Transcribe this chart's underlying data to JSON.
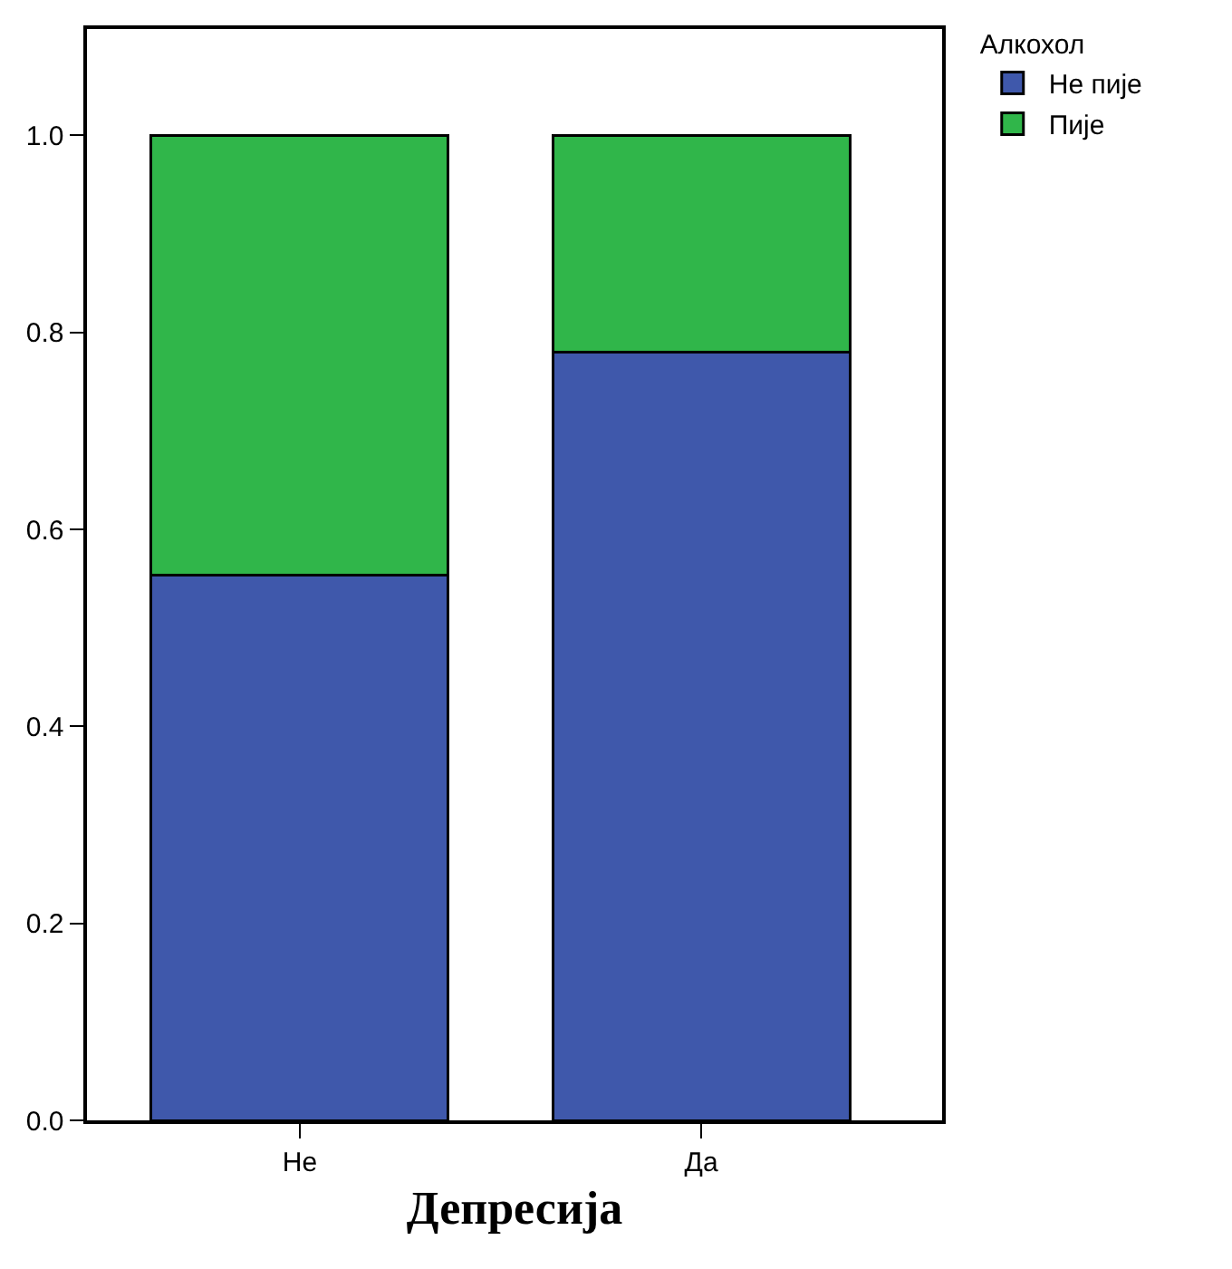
{
  "chart_data": {
    "type": "bar",
    "stacked": true,
    "xlabel": "Депресија",
    "legend_title": "Алкохол",
    "legend": "top right",
    "categories": [
      "Не",
      "Да"
    ],
    "series": [
      {
        "name": "Не пије",
        "color": "#3f58ab",
        "values": [
          0.554,
          0.78
        ]
      },
      {
        "name": "Пије",
        "color": "#30b64a",
        "values": [
          0.446,
          0.22
        ]
      }
    ],
    "ylim": [
      0,
      1.108
    ],
    "yticks": [
      {
        "value": 0,
        "label": "0.0"
      },
      {
        "value": 0.2,
        "label": "0.2"
      },
      {
        "value": 0.4,
        "label": "0.4"
      },
      {
        "value": 0.6,
        "label": "0.6"
      },
      {
        "value": 0.8,
        "label": "0.8"
      },
      {
        "value": 1,
        "label": "1.0"
      }
    ],
    "grid": false
  }
}
